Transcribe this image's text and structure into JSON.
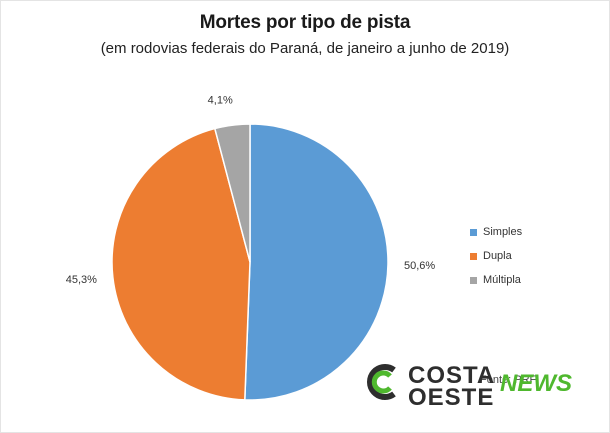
{
  "chart_data": {
    "type": "pie",
    "title": "Mortes por tipo de pista",
    "subtitle": "(em rodovias federais do Paraná, de janeiro a junho de 2019)",
    "slices": [
      {
        "name": "Simples",
        "value": 50.6,
        "label": "50,6%",
        "color": "#5b9bd5"
      },
      {
        "name": "Dupla",
        "value": 45.3,
        "label": "45,3%",
        "color": "#ed7d31"
      },
      {
        "name": "Múltipla",
        "value": 4.1,
        "label": "4,1%",
        "color": "#a5a5a5"
      }
    ],
    "legend_position": "right"
  },
  "source_text": "Fonte: PRF",
  "watermark": {
    "line1": "COSTA",
    "line2": "OESTE",
    "accent": "NEWS",
    "accent_color": "#4fb82e",
    "icon": "costa-oeste-logo-icon"
  }
}
